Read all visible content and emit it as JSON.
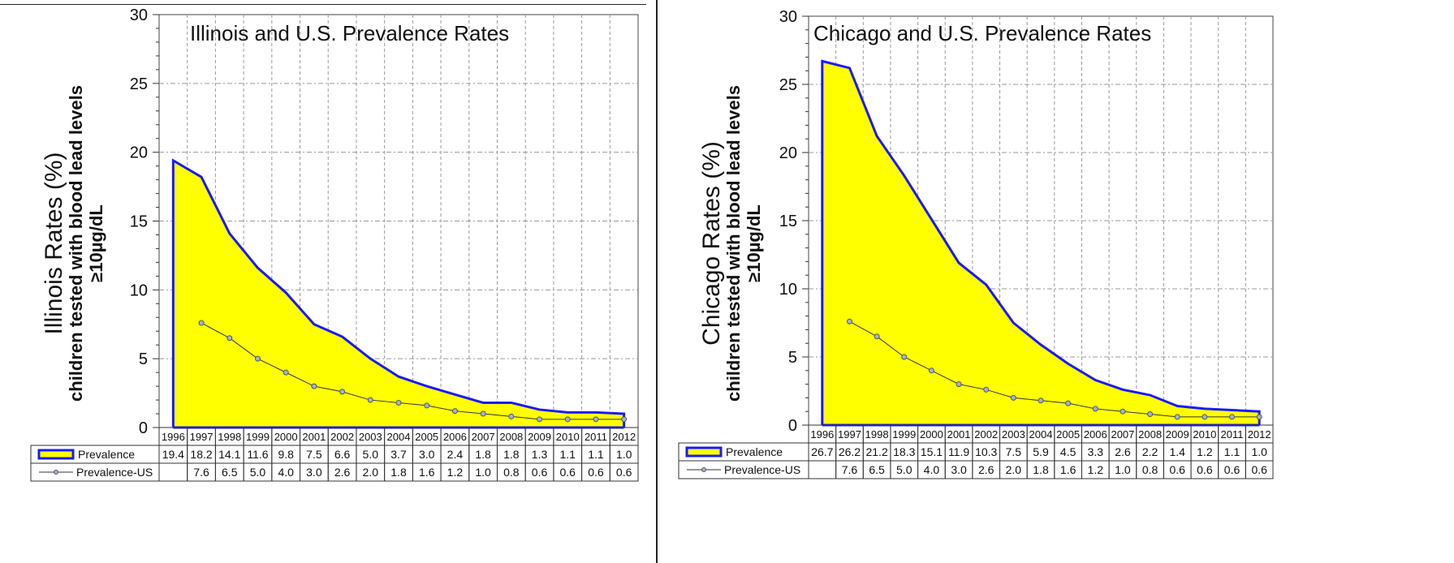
{
  "chart_data": [
    {
      "type": "area",
      "title": "Illinois and U.S. Prevalence Rates",
      "ylabel_lines": [
        "Illinois Rates (%)",
        "children tested with blood lead levels",
        "≥10µg/dL"
      ],
      "ylim": [
        0,
        30
      ],
      "yticks": [
        "0",
        "5",
        "10",
        "15",
        "20",
        "25",
        "30"
      ],
      "grid": true,
      "categories": [
        "1996",
        "1997",
        "1998",
        "1999",
        "2000",
        "2001",
        "2002",
        "2003",
        "2004",
        "2005",
        "2006",
        "2007",
        "2008",
        "2009",
        "2010",
        "2011",
        "2012"
      ],
      "series": [
        {
          "name": "Prevalence",
          "color": "#1a1aff",
          "fill": "#ffff00",
          "values": [
            19.4,
            18.2,
            14.1,
            11.6,
            9.8,
            7.5,
            6.6,
            5.0,
            3.7,
            3.0,
            2.4,
            1.8,
            1.8,
            1.3,
            1.1,
            1.1,
            1.0
          ],
          "labels": [
            "19.4",
            "18.2",
            "14.1",
            "11.6",
            "9.8",
            "7.5",
            "6.6",
            "5.0",
            "3.7",
            "3.0",
            "2.4",
            "1.8",
            "1.8",
            "1.3",
            "1.1",
            "1.1",
            "1.0"
          ]
        },
        {
          "name": "Prevalence-US",
          "color": "#333333",
          "values": [
            null,
            7.6,
            6.5,
            5.0,
            4.0,
            3.0,
            2.6,
            2.0,
            1.8,
            1.6,
            1.2,
            1.0,
            0.8,
            0.6,
            0.6,
            0.6,
            0.6
          ],
          "labels": [
            "",
            "7.6",
            "6.5",
            "5.0",
            "4.0",
            "3.0",
            "2.6",
            "2.0",
            "1.8",
            "1.6",
            "1.2",
            "1.0",
            "0.8",
            "0.6",
            "0.6",
            "0.6",
            "0.6"
          ]
        }
      ]
    },
    {
      "type": "area",
      "title": "Chicago and U.S. Prevalence Rates",
      "ylabel_lines": [
        "Chicago Rates (%)",
        "children tested with blood lead levels",
        "≥10µg/dL"
      ],
      "ylim": [
        0,
        30
      ],
      "yticks": [
        "0",
        "5",
        "10",
        "15",
        "20",
        "25",
        "30"
      ],
      "grid": true,
      "categories": [
        "1996",
        "1997",
        "1998",
        "1999",
        "2000",
        "2001",
        "2002",
        "2003",
        "2004",
        "2005",
        "2006",
        "2007",
        "2008",
        "2009",
        "2010",
        "2011",
        "2012"
      ],
      "series": [
        {
          "name": "Prevalence",
          "color": "#1a1aff",
          "fill": "#ffff00",
          "values": [
            26.7,
            26.2,
            21.2,
            18.3,
            15.1,
            11.9,
            10.3,
            7.5,
            5.9,
            4.5,
            3.3,
            2.6,
            2.2,
            1.4,
            1.2,
            1.1,
            1.0
          ],
          "labels": [
            "26.7",
            "26.2",
            "21.2",
            "18.3",
            "15.1",
            "11.9",
            "10.3",
            "7.5",
            "5.9",
            "4.5",
            "3.3",
            "2.6",
            "2.2",
            "1.4",
            "1.2",
            "1.1",
            "1.0"
          ]
        },
        {
          "name": "Prevalence-US",
          "color": "#333333",
          "values": [
            null,
            7.6,
            6.5,
            5.0,
            4.0,
            3.0,
            2.6,
            2.0,
            1.8,
            1.6,
            1.2,
            1.0,
            0.8,
            0.6,
            0.6,
            0.6,
            0.6
          ],
          "labels": [
            "",
            "7.6",
            "6.5",
            "5.0",
            "4.0",
            "3.0",
            "2.6",
            "2.0",
            "1.8",
            "1.6",
            "1.2",
            "1.0",
            "0.8",
            "0.6",
            "0.6",
            "0.6",
            "0.6"
          ]
        }
      ]
    }
  ]
}
